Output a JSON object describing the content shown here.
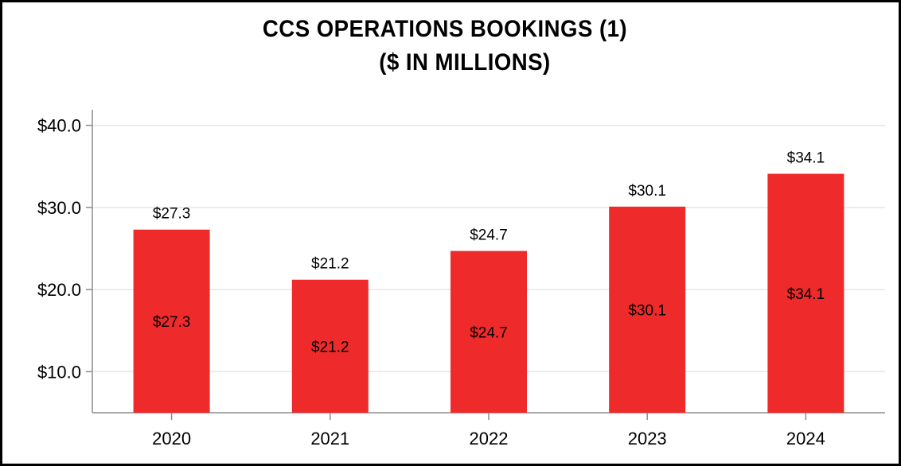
{
  "chart_data": {
    "type": "bar",
    "title_line1": "CCS OPERATIONS BOOKINGS (1)",
    "title_line2": "($ IN MILLIONS)",
    "categories": [
      "2020",
      "2021",
      "2022",
      "2023",
      "2024"
    ],
    "values": [
      27.3,
      21.2,
      24.7,
      30.1,
      34.1
    ],
    "top_labels": [
      "$27.3",
      "$21.2",
      "$24.7",
      "$30.1",
      "$34.1"
    ],
    "inner_labels": [
      "$27.3",
      "$21.2",
      "$24.7",
      "$30.1",
      "$34.1"
    ],
    "y_ticks": [
      10,
      20,
      30,
      40
    ],
    "y_tick_labels": [
      "$10.0",
      "$20.0",
      "$30.0",
      "$40.0"
    ],
    "ylim": [
      5,
      41.9
    ],
    "xlabel": "",
    "ylabel": "",
    "grid": true,
    "bar_color": "#ee2a2a",
    "grid_color": "#e6e6e6",
    "axis_color": "#8c8c8c"
  }
}
